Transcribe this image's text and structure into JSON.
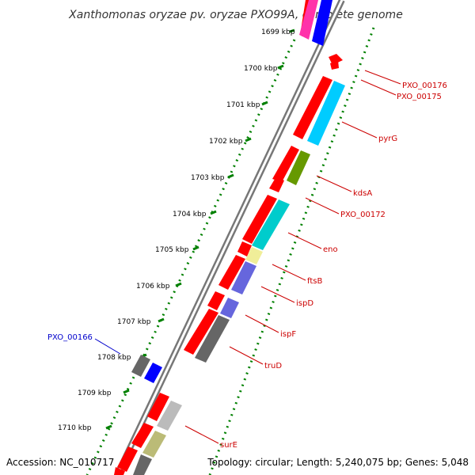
{
  "title": "Xanthomonas oryzae pv. oryzae PXO99A, complete genome",
  "footer": {
    "accession": "Accession: NC_010717",
    "info": "Topology: circular; Length: 5,240,075 bp; Genes: 5,048"
  },
  "ticks": [
    "1699 kbp",
    "1700 kbp",
    "1701 kbp",
    "1702 kbp",
    "1703 kbp",
    "1704 kbp",
    "1705 kbp",
    "1706 kbp",
    "1707 kbp",
    "1708 kbp",
    "1709 kbp",
    "1710 kbp"
  ],
  "gene_labels": [
    {
      "text": "PXO_00176",
      "color": "#cc0000"
    },
    {
      "text": "PXO_00175",
      "color": "#cc0000"
    },
    {
      "text": "pyrG",
      "color": "#cc0000"
    },
    {
      "text": "kdsA",
      "color": "#cc0000"
    },
    {
      "text": "PXO_00172",
      "color": "#cc0000"
    },
    {
      "text": "eno",
      "color": "#cc0000"
    },
    {
      "text": "ftsB",
      "color": "#cc0000"
    },
    {
      "text": "ispD",
      "color": "#cc0000"
    },
    {
      "text": "ispF",
      "color": "#cc0000"
    },
    {
      "text": "truD",
      "color": "#cc0000"
    },
    {
      "text": "surE",
      "color": "#cc0000"
    },
    {
      "text": "PXO_00166",
      "color": "#0000cc"
    }
  ],
  "colors": {
    "forward_cds": "#ff0000",
    "reverse_cds": "#0000ff",
    "dotted_scale": "#008000",
    "backbone": "#888888"
  }
}
